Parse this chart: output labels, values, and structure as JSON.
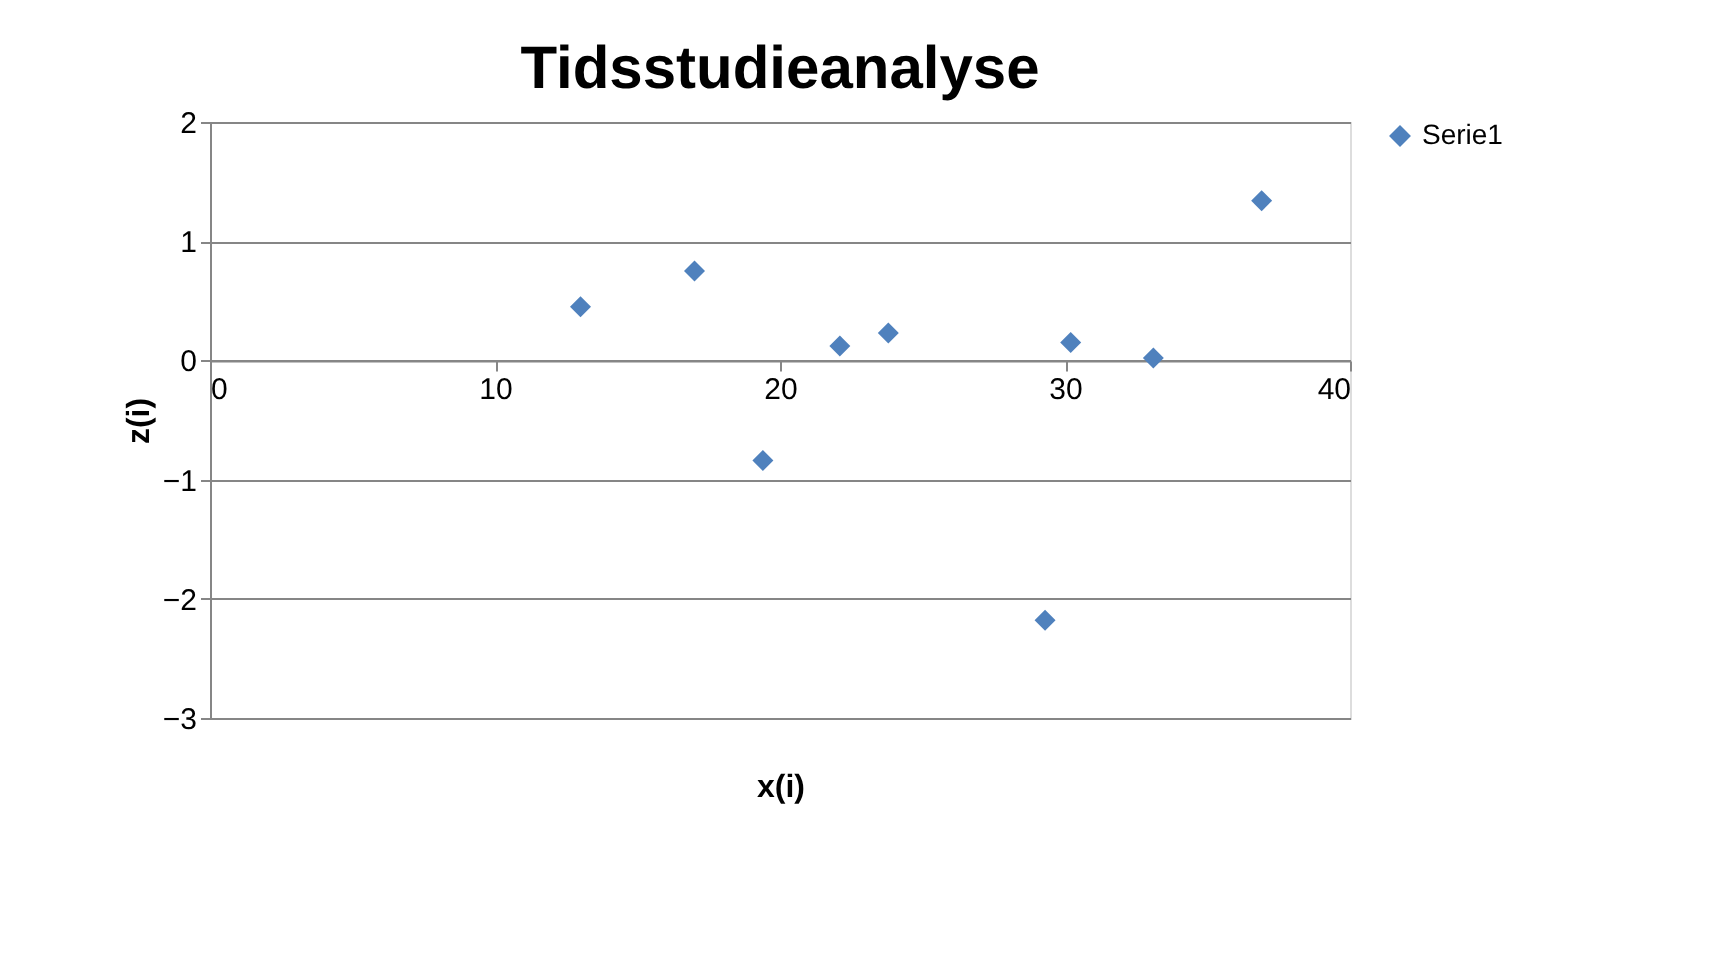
{
  "chart_data": {
    "type": "scatter",
    "title": "Tidsstudieanalyse",
    "xlabel": "x(i)",
    "ylabel": "z(i)",
    "x": [
      13,
      17,
      19.4,
      22.1,
      23.8,
      29.3,
      30.2,
      33.1,
      36.9
    ],
    "series": [
      {
        "name": "Serie1",
        "color": "#4f81bd",
        "values": [
          0.45,
          0.75,
          -0.84,
          0.12,
          0.23,
          -2.18,
          0.15,
          0.02,
          1.34
        ]
      }
    ],
    "xlim": [
      0,
      40
    ],
    "xticks": [
      0,
      10,
      20,
      30,
      40
    ],
    "ylim": [
      -3,
      2
    ],
    "yticks": [
      -3,
      -2,
      -1,
      0,
      1,
      2
    ],
    "grid": "y",
    "legend": "right",
    "marker": "diamond"
  }
}
